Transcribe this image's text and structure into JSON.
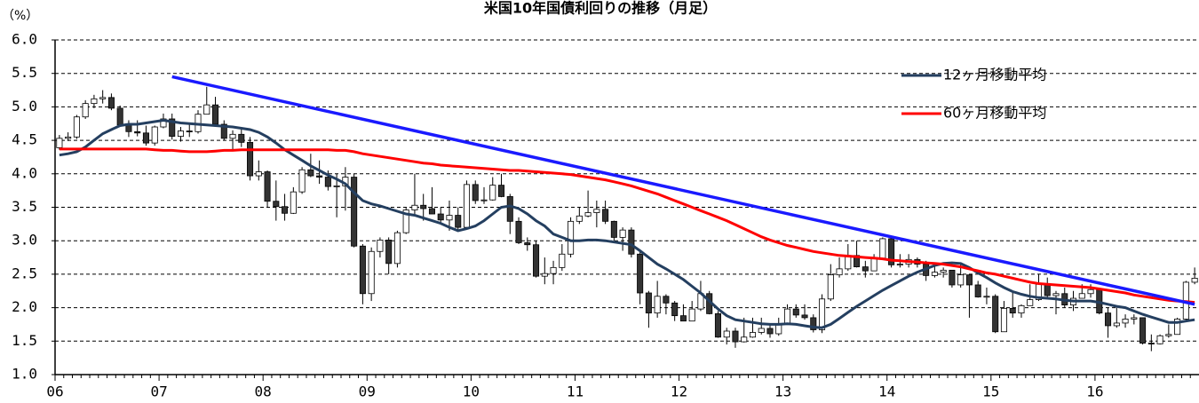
{
  "chart_data": {
    "type": "candlestick",
    "title": "米国10年国債利回りの推移（月足）",
    "y_unit": "（%）",
    "categories": [
      "06",
      null,
      null,
      null,
      null,
      null,
      null,
      null,
      null,
      null,
      null,
      null,
      "07",
      null,
      null,
      null,
      null,
      null,
      null,
      null,
      null,
      null,
      null,
      null,
      "08",
      null,
      null,
      null,
      null,
      null,
      null,
      null,
      null,
      null,
      null,
      null,
      "09",
      null,
      null,
      null,
      null,
      null,
      null,
      null,
      null,
      null,
      null,
      null,
      "10",
      null,
      null,
      null,
      null,
      null,
      null,
      null,
      null,
      null,
      null,
      null,
      "11",
      null,
      null,
      null,
      null,
      null,
      null,
      null,
      null,
      null,
      null,
      null,
      "12",
      null,
      null,
      null,
      null,
      null,
      null,
      null,
      null,
      null,
      null,
      null,
      "13",
      null,
      null,
      null,
      null,
      null,
      null,
      null,
      null,
      null,
      null,
      null,
      "14",
      null,
      null,
      null,
      null,
      null,
      null,
      null,
      null,
      null,
      null,
      null,
      "15",
      null,
      null,
      null,
      null,
      null,
      null,
      null,
      null,
      null,
      null,
      null,
      "16",
      null,
      null,
      null,
      null,
      null,
      null,
      null,
      null,
      null,
      null,
      null
    ],
    "open": [
      4.39,
      4.53,
      4.55,
      4.85,
      5.05,
      5.12,
      5.14,
      4.98,
      4.73,
      4.63,
      4.61,
      4.46,
      4.7,
      4.82,
      4.56,
      4.64,
      4.63,
      4.89,
      5.03,
      4.74,
      4.53,
      4.59,
      4.47,
      3.97,
      4.03,
      3.59,
      3.51,
      3.41,
      3.73,
      4.06,
      3.97,
      3.95,
      3.81,
      3.82,
      3.95,
      2.92,
      2.21,
      2.84,
      3.01,
      2.66,
      3.12,
      3.46,
      3.53,
      3.48,
      3.4,
      3.31,
      3.38,
      3.2,
      3.84,
      3.6,
      3.61,
      3.83,
      3.66,
      3.29,
      2.97,
      2.94,
      2.47,
      2.51,
      2.6,
      2.8,
      3.29,
      3.37,
      3.42,
      3.47,
      3.29,
      3.05,
      3.16,
      2.8,
      2.22,
      1.92,
      2.17,
      2.07,
      1.88,
      1.8,
      1.98,
      2.21,
      1.91,
      1.56,
      1.65,
      1.49,
      1.56,
      1.63,
      1.69,
      1.61,
      1.76,
      1.98,
      1.89,
      1.85,
      1.67,
      2.13,
      2.49,
      2.58,
      2.78,
      2.61,
      2.55,
      2.74,
      3.03,
      2.64,
      2.65,
      2.72,
      2.65,
      2.48,
      2.53,
      2.56,
      2.34,
      2.49,
      2.34,
      2.16,
      2.17,
      1.64,
      1.99,
      1.92,
      2.03,
      2.12,
      2.35,
      2.18,
      2.21,
      2.04,
      2.14,
      2.21,
      2.27,
      1.92,
      1.73,
      1.77,
      1.83,
      1.85,
      1.47,
      1.46,
      1.58,
      1.6,
      1.83,
      2.38
    ],
    "high": [
      4.58,
      4.62,
      4.88,
      5.1,
      5.18,
      5.25,
      5.2,
      5.02,
      4.8,
      4.8,
      4.72,
      4.72,
      4.9,
      4.9,
      4.7,
      4.75,
      4.95,
      5.3,
      5.15,
      4.8,
      4.65,
      4.7,
      4.55,
      4.2,
      4.05,
      3.9,
      3.7,
      3.8,
      4.1,
      4.3,
      4.2,
      4.05,
      4.0,
      4.1,
      4.0,
      2.95,
      2.9,
      3.05,
      3.05,
      3.15,
      3.5,
      4.0,
      3.7,
      3.8,
      3.5,
      3.6,
      3.5,
      3.9,
      3.9,
      3.8,
      3.95,
      4.0,
      3.7,
      3.35,
      3.05,
      3.0,
      2.75,
      2.7,
      2.95,
      3.35,
      3.5,
      3.75,
      3.6,
      3.6,
      3.3,
      3.2,
      3.2,
      2.85,
      2.25,
      2.4,
      2.2,
      2.1,
      2.05,
      2.1,
      2.4,
      2.25,
      1.95,
      1.7,
      1.7,
      1.85,
      1.85,
      1.85,
      1.75,
      1.85,
      2.05,
      2.05,
      2.05,
      1.9,
      2.2,
      2.65,
      2.75,
      2.95,
      3.0,
      2.7,
      2.8,
      3.05,
      3.05,
      2.8,
      2.8,
      2.75,
      2.7,
      2.65,
      2.6,
      2.55,
      2.65,
      2.5,
      2.4,
      2.3,
      2.2,
      2.1,
      2.25,
      2.05,
      2.35,
      2.5,
      2.45,
      2.25,
      2.3,
      2.25,
      2.35,
      2.35,
      2.3,
      2.0,
      2.0,
      1.9,
      1.9,
      1.85,
      1.6,
      1.6,
      1.75,
      1.85,
      2.4,
      2.6
    ],
    "low": [
      4.36,
      4.49,
      4.52,
      4.82,
      4.98,
      5.05,
      4.95,
      4.72,
      4.55,
      4.56,
      4.42,
      4.42,
      4.68,
      4.51,
      4.48,
      4.55,
      4.6,
      4.89,
      4.72,
      4.5,
      4.35,
      4.4,
      3.9,
      3.9,
      3.5,
      3.3,
      3.3,
      3.4,
      3.7,
      3.95,
      3.85,
      3.75,
      3.35,
      3.45,
      2.9,
      2.05,
      2.1,
      2.75,
      2.5,
      2.6,
      3.1,
      3.4,
      3.3,
      3.4,
      3.25,
      3.15,
      3.15,
      3.2,
      3.55,
      3.55,
      3.6,
      3.65,
      3.1,
      2.95,
      2.85,
      2.45,
      2.35,
      2.35,
      2.55,
      2.75,
      3.25,
      3.35,
      3.2,
      3.25,
      3.0,
      2.85,
      2.75,
      2.05,
      1.7,
      1.85,
      1.9,
      1.8,
      1.8,
      1.8,
      1.95,
      1.9,
      1.55,
      1.45,
      1.4,
      1.48,
      1.55,
      1.6,
      1.55,
      1.58,
      1.75,
      1.85,
      1.82,
      1.63,
      1.62,
      2.1,
      2.45,
      2.55,
      2.6,
      2.45,
      2.55,
      2.75,
      2.6,
      2.6,
      2.6,
      2.6,
      2.4,
      2.45,
      2.45,
      2.3,
      2.3,
      1.85,
      2.15,
      2.05,
      1.62,
      1.65,
      1.85,
      1.85,
      2.05,
      2.1,
      2.15,
      1.9,
      2.0,
      1.95,
      2.15,
      2.15,
      1.9,
      1.55,
      1.7,
      1.7,
      1.75,
      1.45,
      1.35,
      1.45,
      1.55,
      1.6,
      1.8,
      2.35
    ],
    "close": [
      4.53,
      4.55,
      4.85,
      5.05,
      5.12,
      5.14,
      4.98,
      4.73,
      4.63,
      4.61,
      4.46,
      4.7,
      4.82,
      4.56,
      4.64,
      4.63,
      4.89,
      5.03,
      4.74,
      4.53,
      4.59,
      4.47,
      3.97,
      4.03,
      3.59,
      3.51,
      3.41,
      3.73,
      4.06,
      3.97,
      3.95,
      3.81,
      3.82,
      3.95,
      2.92,
      2.21,
      2.84,
      3.01,
      2.66,
      3.12,
      3.46,
      3.53,
      3.48,
      3.4,
      3.31,
      3.38,
      3.2,
      3.84,
      3.6,
      3.61,
      3.83,
      3.66,
      3.29,
      2.97,
      2.94,
      2.47,
      2.51,
      2.6,
      2.8,
      3.29,
      3.37,
      3.42,
      3.47,
      3.29,
      3.05,
      3.16,
      2.8,
      2.22,
      1.92,
      2.17,
      2.07,
      1.88,
      1.8,
      1.98,
      2.21,
      1.91,
      1.56,
      1.65,
      1.49,
      1.56,
      1.63,
      1.69,
      1.61,
      1.76,
      1.98,
      1.89,
      1.85,
      1.67,
      2.13,
      2.49,
      2.58,
      2.78,
      2.61,
      2.55,
      2.74,
      3.03,
      2.64,
      2.65,
      2.72,
      2.65,
      2.48,
      2.53,
      2.56,
      2.34,
      2.49,
      2.34,
      2.16,
      2.17,
      1.64,
      1.99,
      1.92,
      2.03,
      2.12,
      2.35,
      2.18,
      2.21,
      2.04,
      2.14,
      2.21,
      2.27,
      1.92,
      1.73,
      1.77,
      1.83,
      1.85,
      1.47,
      1.46,
      1.58,
      1.6,
      1.83,
      2.38,
      2.44
    ],
    "up_color": "#ffffff",
    "down_color": "#333333",
    "series": [
      {
        "name": "12ヶ月移動平均",
        "color": "#243f60",
        "values": [
          4.28,
          4.3,
          4.33,
          4.4,
          4.5,
          4.6,
          4.66,
          4.72,
          4.74,
          4.74,
          4.76,
          4.78,
          4.8,
          4.78,
          4.76,
          4.75,
          4.74,
          4.73,
          4.72,
          4.71,
          4.7,
          4.68,
          4.66,
          4.62,
          4.55,
          4.46,
          4.36,
          4.28,
          4.2,
          4.12,
          4.05,
          3.98,
          3.92,
          3.85,
          3.72,
          3.6,
          3.55,
          3.52,
          3.48,
          3.44,
          3.4,
          3.38,
          3.34,
          3.3,
          3.26,
          3.2,
          3.15,
          3.18,
          3.22,
          3.3,
          3.4,
          3.5,
          3.52,
          3.48,
          3.4,
          3.3,
          3.22,
          3.1,
          3.05,
          3.0,
          3.0,
          3.01,
          3.01,
          3.0,
          2.98,
          2.96,
          2.94,
          2.85,
          2.75,
          2.65,
          2.58,
          2.5,
          2.42,
          2.32,
          2.22,
          2.1,
          1.98,
          1.88,
          1.82,
          1.8,
          1.78,
          1.76,
          1.75,
          1.75,
          1.76,
          1.75,
          1.73,
          1.71,
          1.7,
          1.75,
          1.84,
          1.93,
          2.02,
          2.1,
          2.18,
          2.26,
          2.33,
          2.4,
          2.47,
          2.53,
          2.58,
          2.63,
          2.66,
          2.67,
          2.66,
          2.6,
          2.52,
          2.45,
          2.37,
          2.3,
          2.24,
          2.2,
          2.17,
          2.15,
          2.14,
          2.13,
          2.11,
          2.1,
          2.1,
          2.1,
          2.08,
          2.05,
          2.02,
          2.0,
          1.95,
          1.9,
          1.86,
          1.82,
          1.78,
          1.78,
          1.8,
          1.82
        ]
      },
      {
        "name": "60ヶ月移動平均",
        "color": "#ff0000",
        "values": [
          4.37,
          4.37,
          4.37,
          4.37,
          4.37,
          4.37,
          4.37,
          4.37,
          4.37,
          4.37,
          4.37,
          4.36,
          4.35,
          4.35,
          4.34,
          4.33,
          4.33,
          4.33,
          4.34,
          4.35,
          4.35,
          4.36,
          4.36,
          4.36,
          4.36,
          4.36,
          4.36,
          4.36,
          4.36,
          4.36,
          4.36,
          4.36,
          4.35,
          4.35,
          4.33,
          4.3,
          4.28,
          4.26,
          4.24,
          4.22,
          4.2,
          4.18,
          4.16,
          4.15,
          4.13,
          4.12,
          4.11,
          4.1,
          4.09,
          4.08,
          4.07,
          4.06,
          4.05,
          4.05,
          4.04,
          4.03,
          4.02,
          4.01,
          4.0,
          3.99,
          3.97,
          3.95,
          3.93,
          3.91,
          3.88,
          3.85,
          3.82,
          3.78,
          3.74,
          3.7,
          3.65,
          3.6,
          3.55,
          3.5,
          3.45,
          3.4,
          3.35,
          3.3,
          3.24,
          3.18,
          3.12,
          3.06,
          3.01,
          2.97,
          2.93,
          2.9,
          2.87,
          2.84,
          2.82,
          2.8,
          2.78,
          2.77,
          2.76,
          2.75,
          2.74,
          2.73,
          2.71,
          2.7,
          2.69,
          2.68,
          2.67,
          2.66,
          2.65,
          2.63,
          2.61,
          2.58,
          2.55,
          2.52,
          2.5,
          2.47,
          2.44,
          2.41,
          2.38,
          2.36,
          2.35,
          2.34,
          2.33,
          2.32,
          2.31,
          2.3,
          2.28,
          2.26,
          2.24,
          2.22,
          2.19,
          2.17,
          2.15,
          2.13,
          2.11,
          2.1,
          2.09,
          2.08
        ]
      }
    ],
    "trendline": {
      "color": "#1a1aff",
      "from": [
        13,
        5.45
      ],
      "to": [
        131,
        2.05
      ]
    },
    "ylim": [
      1,
      6
    ],
    "yticks": [
      {
        "value": 1,
        "label": "1.0"
      },
      {
        "value": 1.5,
        "label": "1.5"
      },
      {
        "value": 2,
        "label": "2.0"
      },
      {
        "value": 2.5,
        "label": "2.5"
      },
      {
        "value": 3,
        "label": "3.0"
      },
      {
        "value": 3.5,
        "label": "3.5"
      },
      {
        "value": 4,
        "label": "4.0"
      },
      {
        "value": 4.5,
        "label": "4.5"
      },
      {
        "value": 5,
        "label": "5.0"
      },
      {
        "value": 5.5,
        "label": "5.5"
      },
      {
        "value": 6,
        "label": "6.0"
      }
    ],
    "grid": true,
    "legend": "upper right"
  }
}
